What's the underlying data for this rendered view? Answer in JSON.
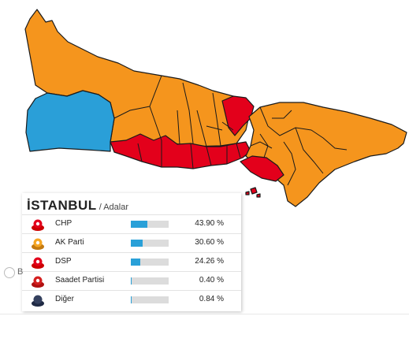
{
  "map": {
    "colors": {
      "chp": "#e3001b",
      "ak_parti": "#f5951d",
      "dsp": "#2a9fd8",
      "border": "#1a1a1a"
    }
  },
  "results": {
    "city": "İSTANBUL",
    "district": "/ Adalar",
    "rows": [
      {
        "icon": "chp-party-icon",
        "name": "CHP",
        "percent_label": "43.90 %",
        "percent": 43.9
      },
      {
        "icon": "ak-parti-party-icon",
        "name": "AK Parti",
        "percent_label": "30.60 %",
        "percent": 30.6
      },
      {
        "icon": "dsp-party-icon",
        "name": "DSP",
        "percent_label": "24.26 %",
        "percent": 24.26
      },
      {
        "icon": "saadet-party-icon",
        "name": "Saadet Partisi",
        "percent_label": "0.40 %",
        "percent": 0.4
      },
      {
        "icon": "other-parties-icon",
        "name": "Diğer",
        "percent_label": "0.84 %",
        "percent": 0.84
      }
    ]
  },
  "side": {
    "label": "B"
  }
}
